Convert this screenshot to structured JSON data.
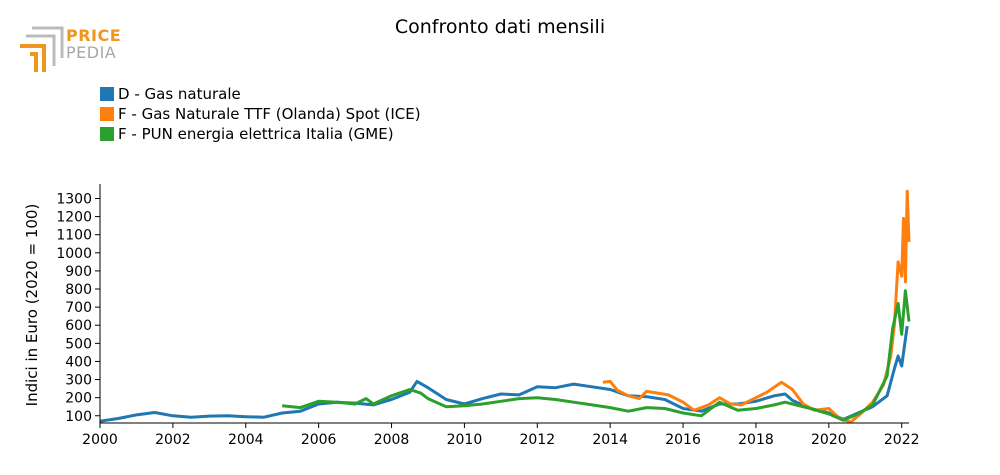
{
  "chart_data": {
    "type": "line",
    "title": "Confronto dati mensili",
    "xlabel": "",
    "ylabel": "Indici in Euro (2020 = 100)",
    "xlim": [
      2000.0,
      2022.2
    ],
    "ylim": [
      60,
      1380
    ],
    "x_ticks": [
      2000,
      2002,
      2004,
      2006,
      2008,
      2010,
      2012,
      2014,
      2016,
      2018,
      2020,
      2022
    ],
    "y_ticks": [
      100,
      200,
      300,
      400,
      500,
      600,
      700,
      800,
      900,
      1000,
      1100,
      1200,
      1300
    ],
    "grid": false,
    "legend_position": "top-left",
    "series": [
      {
        "name": "D - Gas naturale",
        "color": "#1f77b4",
        "points": [
          [
            2000.0,
            70
          ],
          [
            2000.5,
            85
          ],
          [
            2001.0,
            105
          ],
          [
            2001.5,
            118
          ],
          [
            2002.0,
            100
          ],
          [
            2002.5,
            92
          ],
          [
            2003.0,
            98
          ],
          [
            2003.5,
            100
          ],
          [
            2004.0,
            95
          ],
          [
            2004.5,
            92
          ],
          [
            2005.0,
            115
          ],
          [
            2005.5,
            125
          ],
          [
            2006.0,
            165
          ],
          [
            2006.5,
            175
          ],
          [
            2007.0,
            170
          ],
          [
            2007.5,
            160
          ],
          [
            2008.0,
            190
          ],
          [
            2008.5,
            230
          ],
          [
            2008.7,
            290
          ],
          [
            2009.0,
            255
          ],
          [
            2009.5,
            190
          ],
          [
            2010.0,
            165
          ],
          [
            2010.5,
            195
          ],
          [
            2011.0,
            220
          ],
          [
            2011.5,
            215
          ],
          [
            2012.0,
            260
          ],
          [
            2012.5,
            255
          ],
          [
            2013.0,
            275
          ],
          [
            2013.5,
            260
          ],
          [
            2014.0,
            245
          ],
          [
            2014.5,
            210
          ],
          [
            2015.0,
            205
          ],
          [
            2015.5,
            190
          ],
          [
            2016.0,
            140
          ],
          [
            2016.5,
            125
          ],
          [
            2017.0,
            165
          ],
          [
            2017.5,
            165
          ],
          [
            2018.0,
            180
          ],
          [
            2018.5,
            210
          ],
          [
            2018.8,
            220
          ],
          [
            2019.0,
            185
          ],
          [
            2019.5,
            140
          ],
          [
            2020.0,
            115
          ],
          [
            2020.4,
            80
          ],
          [
            2020.8,
            115
          ],
          [
            2021.2,
            150
          ],
          [
            2021.6,
            210
          ],
          [
            2021.8,
            360
          ],
          [
            2021.9,
            430
          ],
          [
            2022.0,
            375
          ],
          [
            2022.15,
            595
          ]
        ]
      },
      {
        "name": "F - Gas Naturale TTF (Olanda) Spot (ICE)",
        "color": "#ff7f0e",
        "points": [
          [
            2013.8,
            285
          ],
          [
            2014.0,
            290
          ],
          [
            2014.2,
            240
          ],
          [
            2014.5,
            210
          ],
          [
            2014.8,
            195
          ],
          [
            2015.0,
            235
          ],
          [
            2015.3,
            225
          ],
          [
            2015.6,
            215
          ],
          [
            2016.0,
            175
          ],
          [
            2016.3,
            130
          ],
          [
            2016.7,
            160
          ],
          [
            2017.0,
            200
          ],
          [
            2017.3,
            165
          ],
          [
            2017.6,
            160
          ],
          [
            2018.0,
            200
          ],
          [
            2018.3,
            230
          ],
          [
            2018.7,
            285
          ],
          [
            2019.0,
            245
          ],
          [
            2019.3,
            165
          ],
          [
            2019.6,
            130
          ],
          [
            2020.0,
            140
          ],
          [
            2020.3,
            85
          ],
          [
            2020.6,
            65
          ],
          [
            2020.9,
            115
          ],
          [
            2021.2,
            175
          ],
          [
            2021.5,
            270
          ],
          [
            2021.7,
            430
          ],
          [
            2021.8,
            600
          ],
          [
            2021.9,
            950
          ],
          [
            2022.0,
            870
          ],
          [
            2022.05,
            1190
          ],
          [
            2022.1,
            840
          ],
          [
            2022.15,
            1340
          ],
          [
            2022.2,
            1060
          ]
        ]
      },
      {
        "name": "F - PUN energia elettrica Italia (GME)",
        "color": "#2ca02c",
        "points": [
          [
            2005.0,
            155
          ],
          [
            2005.5,
            145
          ],
          [
            2006.0,
            180
          ],
          [
            2006.5,
            175
          ],
          [
            2007.0,
            165
          ],
          [
            2007.3,
            195
          ],
          [
            2007.5,
            165
          ],
          [
            2008.0,
            210
          ],
          [
            2008.5,
            245
          ],
          [
            2008.8,
            225
          ],
          [
            2009.0,
            195
          ],
          [
            2009.5,
            150
          ],
          [
            2010.0,
            155
          ],
          [
            2010.5,
            165
          ],
          [
            2011.0,
            180
          ],
          [
            2011.5,
            195
          ],
          [
            2012.0,
            200
          ],
          [
            2012.5,
            190
          ],
          [
            2013.0,
            175
          ],
          [
            2013.5,
            160
          ],
          [
            2014.0,
            145
          ],
          [
            2014.5,
            125
          ],
          [
            2015.0,
            145
          ],
          [
            2015.5,
            140
          ],
          [
            2016.0,
            115
          ],
          [
            2016.5,
            100
          ],
          [
            2017.0,
            175
          ],
          [
            2017.5,
            130
          ],
          [
            2018.0,
            140
          ],
          [
            2018.5,
            160
          ],
          [
            2018.8,
            175
          ],
          [
            2019.0,
            165
          ],
          [
            2019.5,
            140
          ],
          [
            2020.0,
            110
          ],
          [
            2020.4,
            75
          ],
          [
            2020.8,
            110
          ],
          [
            2021.2,
            160
          ],
          [
            2021.6,
            320
          ],
          [
            2021.75,
            580
          ],
          [
            2021.9,
            720
          ],
          [
            2022.0,
            550
          ],
          [
            2022.1,
            790
          ],
          [
            2022.2,
            620
          ]
        ]
      }
    ]
  },
  "logo": {
    "line1": "PRICE",
    "line2": "PEDIA"
  }
}
